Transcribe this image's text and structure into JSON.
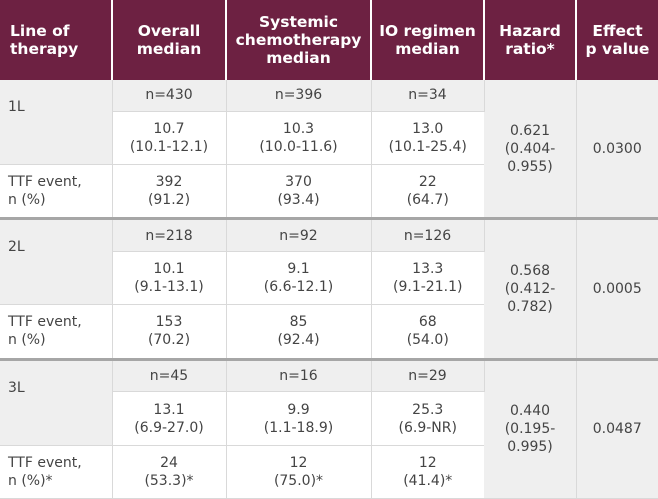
{
  "headers": [
    "Line of\ntherapy",
    "Overall\nmedian",
    "Systemic\nchemotherapy\nmedian",
    "IO regimen\nmedian",
    "Hazard\nratio*",
    "Effect\np value"
  ],
  "groups": [
    {
      "line": "1L",
      "n": {
        "overall": "n=430",
        "chemo": "n=396",
        "io": "n=34"
      },
      "median": {
        "overall": "10.7\n(10.1-12.1)",
        "chemo": "10.3\n(10.0-11.6)",
        "io": "13.0\n(10.1-25.4)"
      },
      "ttf_label": "TTF event,\nn (%)",
      "ttf": {
        "overall": "392\n(91.2)",
        "chemo": "370\n(93.4)",
        "io": "22\n(64.7)"
      },
      "hazard_ratio": "0.621\n(0.404-\n0.955)",
      "p_value": "0.0300"
    },
    {
      "line": "2L",
      "n": {
        "overall": "n=218",
        "chemo": "n=92",
        "io": "n=126"
      },
      "median": {
        "overall": "10.1\n(9.1-13.1)",
        "chemo": "9.1\n(6.6-12.1)",
        "io": "13.3\n(9.1-21.1)"
      },
      "ttf_label": "TTF event,\nn (%)",
      "ttf": {
        "overall": "153\n(70.2)",
        "chemo": "85\n(92.4)",
        "io": "68\n(54.0)"
      },
      "hazard_ratio": "0.568\n(0.412-\n0.782)",
      "p_value": "0.0005"
    },
    {
      "line": "3L",
      "n": {
        "overall": "n=45",
        "chemo": "n=16",
        "io": "n=29"
      },
      "median": {
        "overall": "13.1\n(6.9-27.0)",
        "chemo": "9.9\n(1.1-18.9)",
        "io": "25.3\n(6.9-NR)"
      },
      "ttf_label": "TTF event,\nn (%)*",
      "ttf": {
        "overall": "24\n(53.3)*",
        "chemo": "12\n(75.0)*",
        "io": "12\n(41.4)*"
      },
      "hazard_ratio": "0.440\n(0.195-\n0.995)",
      "p_value": "0.0487"
    }
  ],
  "colors": {
    "header_bg": "#6d2142",
    "header_text": "#ffffff",
    "shade_bg": "#efefef",
    "body_text": "#444444",
    "group_divider": "#a6a6a6"
  }
}
